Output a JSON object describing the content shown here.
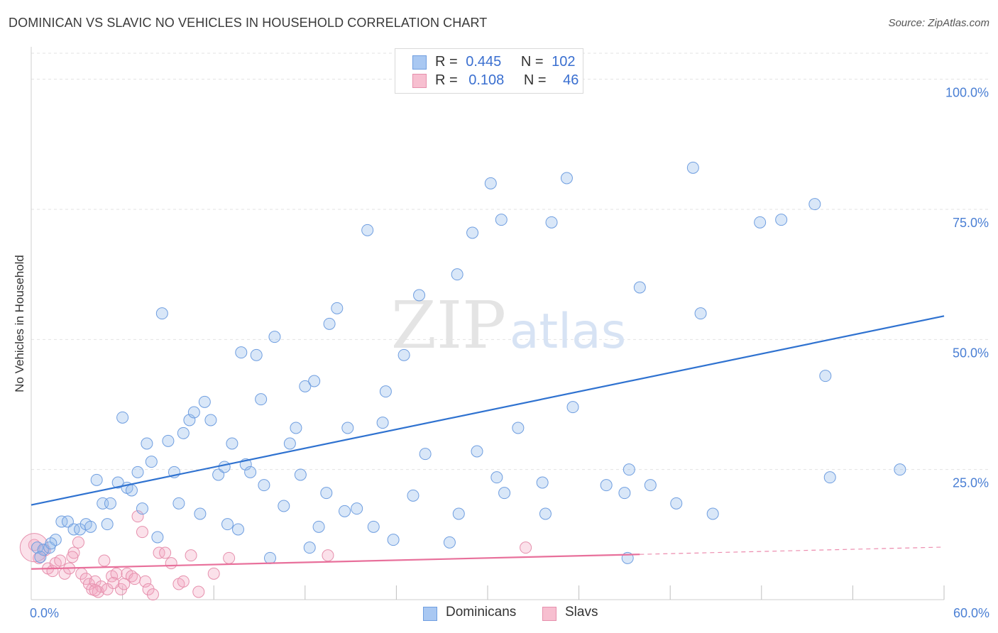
{
  "header": {
    "title": "DOMINICAN VS SLAVIC NO VEHICLES IN HOUSEHOLD CORRELATION CHART",
    "source": "Source: ZipAtlas.com"
  },
  "watermark": {
    "zip": "ZIP",
    "atlas": "atlas"
  },
  "legend": {
    "rows": [
      {
        "r_label": "R =",
        "r_value": "0.445",
        "n_label": "N =",
        "n_value": "102",
        "color": "#a9c8f2",
        "border": "#6f9ee0"
      },
      {
        "r_label": "R =",
        "r_value": "0.108",
        "n_label": "N =",
        "n_value": "46",
        "color": "#f7bfd0",
        "border": "#e690ad"
      }
    ]
  },
  "bottom_legend": [
    {
      "label": "Dominicans",
      "color": "#a9c8f2",
      "border": "#6f9ee0"
    },
    {
      "label": "Slavs",
      "color": "#f7bfd0",
      "border": "#e690ad"
    }
  ],
  "colors": {
    "blue_line": "#2f72d0",
    "pink_line": "#e8709b",
    "blue_fill": "rgba(147,185,236,0.35)",
    "blue_stroke": "#6f9ee0",
    "pink_fill": "rgba(244,170,196,0.35)",
    "pink_stroke": "#e690ad",
    "tick_label": "#4a7fd4",
    "grid": "#e3e3e3"
  },
  "chart_data": {
    "type": "scatter",
    "title": "DOMINICAN VS SLAVIC NO VEHICLES IN HOUSEHOLD CORRELATION CHART",
    "xlabel": "",
    "ylabel": "No Vehicles in Household",
    "xlim": [
      0,
      60
    ],
    "ylim": [
      0,
      105
    ],
    "x_tick_labels": [
      {
        "value": 0,
        "label": "0.0%"
      },
      {
        "value": 60,
        "label": "60.0%"
      }
    ],
    "y_tick_labels": [
      {
        "value": 25,
        "label": "25.0%"
      },
      {
        "value": 50,
        "label": "50.0%"
      },
      {
        "value": 75,
        "label": "75.0%"
      },
      {
        "value": 100,
        "label": "100.0%"
      }
    ],
    "x_minor_ticks": [
      6,
      12,
      18,
      24,
      30,
      36,
      42,
      48,
      54,
      60
    ],
    "series": [
      {
        "name": "Dominicans",
        "R": 0.445,
        "N": 102,
        "trend": {
          "x0": 0,
          "y0": 18.2,
          "x1": 60,
          "y1": 54.5
        },
        "points": [
          [
            0.4,
            10
          ],
          [
            0.8,
            9.6
          ],
          [
            1.2,
            10
          ],
          [
            1.6,
            11.5
          ],
          [
            2,
            15
          ],
          [
            2.4,
            15
          ],
          [
            2.8,
            13.5
          ],
          [
            3.2,
            13.5
          ],
          [
            3.6,
            14.5
          ],
          [
            3.9,
            14
          ],
          [
            4.3,
            23
          ],
          [
            4.7,
            18.5
          ],
          [
            5,
            14.5
          ],
          [
            5.2,
            18.5
          ],
          [
            5.7,
            22.5
          ],
          [
            6,
            35
          ],
          [
            6.3,
            21.5
          ],
          [
            6.6,
            21
          ],
          [
            7,
            24.5
          ],
          [
            7.3,
            17.5
          ],
          [
            7.6,
            30
          ],
          [
            7.9,
            26.5
          ],
          [
            8.3,
            12
          ],
          [
            8.6,
            55
          ],
          [
            9,
            30.5
          ],
          [
            9.4,
            24.5
          ],
          [
            9.7,
            18.5
          ],
          [
            10,
            32
          ],
          [
            10.4,
            34.5
          ],
          [
            10.7,
            36
          ],
          [
            11.1,
            16.5
          ],
          [
            11.4,
            38
          ],
          [
            11.8,
            34.5
          ],
          [
            12.3,
            24
          ],
          [
            12.7,
            25.5
          ],
          [
            12.9,
            14.5
          ],
          [
            13.2,
            30
          ],
          [
            13.6,
            13.5
          ],
          [
            13.8,
            47.5
          ],
          [
            14.1,
            26
          ],
          [
            14.4,
            24.5
          ],
          [
            14.8,
            47
          ],
          [
            15.1,
            38.5
          ],
          [
            15.3,
            22
          ],
          [
            15.7,
            8
          ],
          [
            16,
            50.5
          ],
          [
            16.6,
            18
          ],
          [
            17,
            30
          ],
          [
            17.4,
            33
          ],
          [
            17.7,
            24
          ],
          [
            18,
            41
          ],
          [
            18.3,
            10
          ],
          [
            18.6,
            42
          ],
          [
            18.9,
            14
          ],
          [
            19.4,
            20.5
          ],
          [
            19.6,
            53
          ],
          [
            20.1,
            56
          ],
          [
            20.6,
            17
          ],
          [
            20.8,
            33
          ],
          [
            21.4,
            17.5
          ],
          [
            22.1,
            71
          ],
          [
            22.5,
            14
          ],
          [
            23.1,
            34
          ],
          [
            23.3,
            40
          ],
          [
            23.8,
            11.5
          ],
          [
            24.5,
            47
          ],
          [
            25.1,
            20
          ],
          [
            25.5,
            58.5
          ],
          [
            25.9,
            28
          ],
          [
            27.5,
            11
          ],
          [
            28,
            62.5
          ],
          [
            28.1,
            16.5
          ],
          [
            29,
            70.5
          ],
          [
            29.3,
            28.5
          ],
          [
            30.2,
            80
          ],
          [
            30.6,
            23.5
          ],
          [
            30.9,
            73
          ],
          [
            31.1,
            20.5
          ],
          [
            32,
            33
          ],
          [
            33.6,
            22.5
          ],
          [
            33.8,
            16.5
          ],
          [
            34.2,
            72.5
          ],
          [
            35.2,
            81
          ],
          [
            35.6,
            37
          ],
          [
            37.8,
            22
          ],
          [
            39,
            20.5
          ],
          [
            39.2,
            8
          ],
          [
            39.3,
            25
          ],
          [
            40,
            60
          ],
          [
            40.7,
            22
          ],
          [
            42.4,
            18.5
          ],
          [
            43.5,
            83
          ],
          [
            44,
            55
          ],
          [
            44.8,
            16.5
          ],
          [
            47.9,
            72.5
          ],
          [
            49.3,
            73
          ],
          [
            51.5,
            76
          ],
          [
            52.2,
            43
          ],
          [
            52.5,
            23.5
          ],
          [
            57.1,
            25
          ],
          [
            0.6,
            8.2
          ],
          [
            1.3,
            10.8
          ]
        ]
      },
      {
        "name": "Slavs",
        "R": 0.108,
        "N": 46,
        "trend": {
          "x0": 0,
          "y0": 5.9,
          "x1": 40,
          "y1": 8.7,
          "dashed_to_x": 60,
          "dashed_to_y": 10.1
        },
        "points": [
          [
            0.2,
            10.5
          ],
          [
            0.5,
            8
          ],
          [
            0.9,
            9.5
          ],
          [
            1.1,
            6
          ],
          [
            1.4,
            5.5
          ],
          [
            1.6,
            7
          ],
          [
            1.9,
            7.5
          ],
          [
            2.2,
            5
          ],
          [
            2.5,
            6
          ],
          [
            2.8,
            9
          ],
          [
            3.1,
            11
          ],
          [
            3.3,
            5
          ],
          [
            3.6,
            4
          ],
          [
            3.8,
            3
          ],
          [
            4,
            2
          ],
          [
            4.2,
            3.5
          ],
          [
            4.4,
            1.5
          ],
          [
            4.6,
            2.5
          ],
          [
            4.8,
            7.5
          ],
          [
            5,
            2
          ],
          [
            5.3,
            4.5
          ],
          [
            5.6,
            5
          ],
          [
            5.9,
            2
          ],
          [
            6.1,
            3
          ],
          [
            6.3,
            5
          ],
          [
            6.6,
            4.5
          ],
          [
            6.8,
            4
          ],
          [
            7,
            16
          ],
          [
            7.3,
            13
          ],
          [
            7.5,
            3.5
          ],
          [
            7.7,
            2
          ],
          [
            8,
            1
          ],
          [
            8.4,
            9
          ],
          [
            8.8,
            9
          ],
          [
            9.2,
            7
          ],
          [
            9.7,
            3
          ],
          [
            10,
            3.5
          ],
          [
            10.5,
            8.5
          ],
          [
            11,
            1.5
          ],
          [
            12,
            5
          ],
          [
            13,
            8
          ],
          [
            19.5,
            8.5
          ],
          [
            32.5,
            10
          ],
          [
            4.2,
            1.8
          ],
          [
            5.4,
            3.2
          ],
          [
            2.7,
            8.2
          ]
        ]
      }
    ]
  }
}
